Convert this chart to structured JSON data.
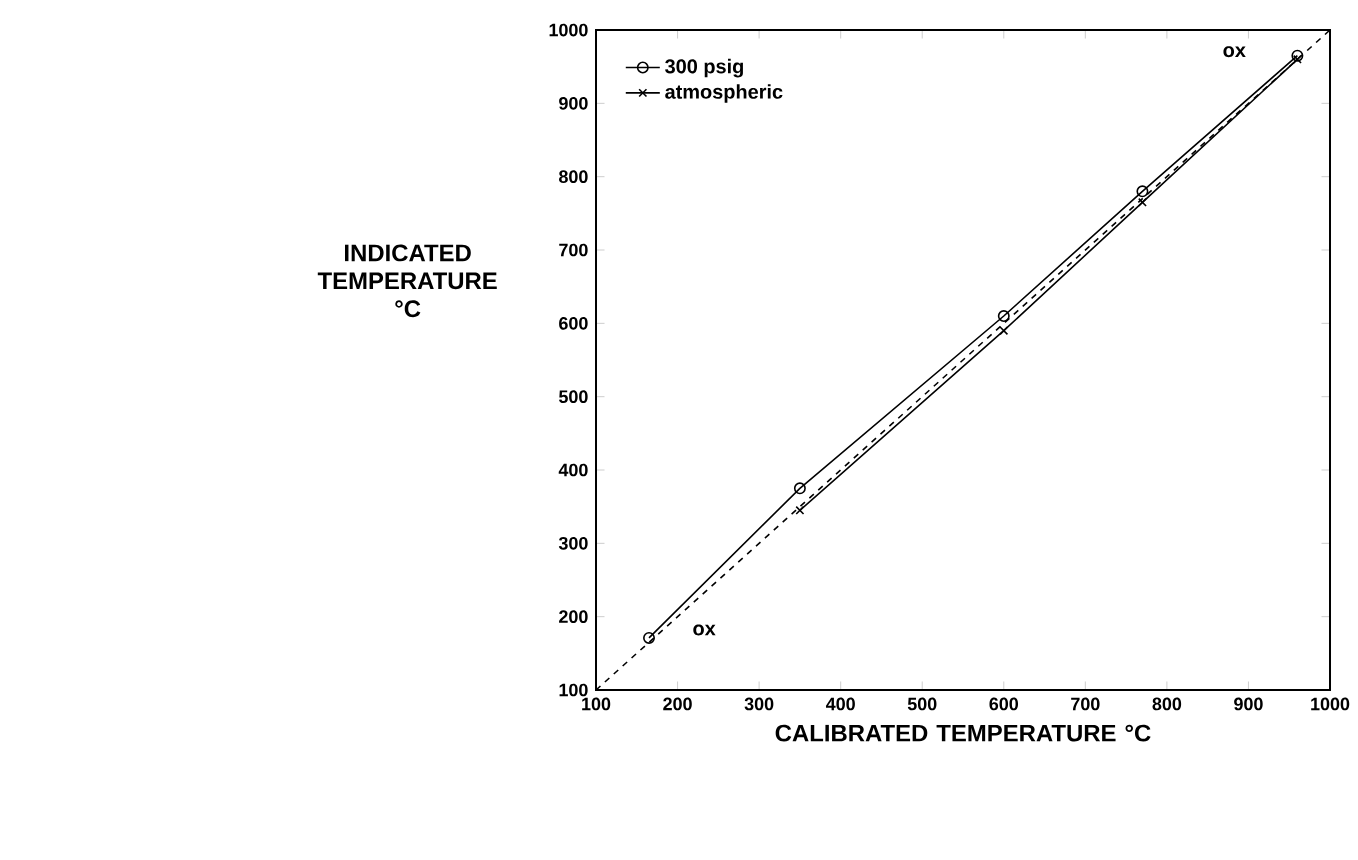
{
  "chart_data": {
    "type": "line",
    "xlabel": "CALIBRATED TEMPERATURE °C",
    "ylabel": "INDICATED TEMPERATURE °C",
    "xlim": [
      100,
      1000
    ],
    "ylim": [
      100,
      1000
    ],
    "xticks": [
      100,
      200,
      300,
      400,
      500,
      600,
      700,
      800,
      900,
      1000
    ],
    "yticks": [
      100,
      200,
      300,
      400,
      500,
      600,
      700,
      800,
      900,
      1000
    ],
    "series": [
      {
        "name": "300 psig",
        "color": "#000000",
        "marker": "circle",
        "x": [
          165,
          350,
          600,
          770,
          960
        ],
        "values": [
          171,
          375,
          610,
          780,
          965
        ]
      },
      {
        "name": "atmospheric",
        "color": "#000000",
        "marker": "cross",
        "x": [
          350,
          600,
          770,
          960
        ],
        "values": [
          345,
          590,
          765,
          960
        ]
      },
      {
        "color": "#000000",
        "marker": "none",
        "line_style": "dashed",
        "x": [
          100,
          1000
        ],
        "values": [
          100,
          1000
        ]
      }
    ],
    "annotations": [
      {
        "text": "ox",
        "x": 960,
        "y": 965
      },
      {
        "text": "ox",
        "x": 165,
        "y": 171
      }
    ],
    "legend": "top left"
  }
}
